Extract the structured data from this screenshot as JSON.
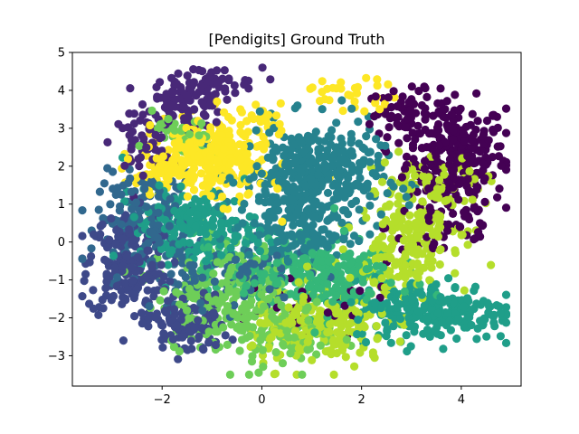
{
  "chart_data": {
    "type": "scatter",
    "title": "[Pendigits] Ground Truth",
    "xlabel": "",
    "ylabel": "",
    "xlim": [
      -3.8,
      5.2
    ],
    "ylim": [
      -3.8,
      5.0
    ],
    "xticks": [
      -2,
      0,
      2,
      4
    ],
    "yticks": [
      -3,
      -2,
      -1,
      0,
      1,
      2,
      3,
      4,
      5
    ],
    "xtick_labels": [
      "−2",
      "0",
      "2",
      "4"
    ],
    "ytick_labels": [
      "−3",
      "−2",
      "−1",
      "0",
      "1",
      "2",
      "3",
      "4",
      "5"
    ],
    "grid": false,
    "legend": "none",
    "colormap": "viridis",
    "series": [
      {
        "color": "#440154",
        "clusters": [
          {
            "cx": 3.9,
            "cy": 2.3,
            "sx": 0.5,
            "sy": 0.7,
            "n": 260
          },
          {
            "cx": 2.9,
            "cy": 3.4,
            "sx": 0.4,
            "sy": 0.3,
            "n": 60
          },
          {
            "cx": 3.7,
            "cy": 0.4,
            "sx": 0.6,
            "sy": 0.5,
            "n": 50
          },
          {
            "cx": 0.8,
            "cy": -1.8,
            "sx": 1.0,
            "sy": 0.4,
            "n": 30
          }
        ]
      },
      {
        "color": "#482878",
        "clusters": [
          {
            "cx": -1.5,
            "cy": 3.7,
            "sx": 0.4,
            "sy": 0.35,
            "n": 110
          },
          {
            "cx": -2.4,
            "cy": 2.6,
            "sx": 0.3,
            "sy": 0.35,
            "n": 50
          },
          {
            "cx": -1.0,
            "cy": 4.2,
            "sx": 0.5,
            "sy": 0.2,
            "n": 30
          }
        ]
      },
      {
        "color": "#3e4989",
        "clusters": [
          {
            "cx": -2.7,
            "cy": -0.6,
            "sx": 0.4,
            "sy": 0.7,
            "n": 200
          },
          {
            "cx": -1.5,
            "cy": -2.2,
            "sx": 0.4,
            "sy": 0.4,
            "n": 120
          }
        ]
      },
      {
        "color": "#31688e",
        "clusters": [
          {
            "cx": -2.3,
            "cy": 0.6,
            "sx": 0.5,
            "sy": 0.6,
            "n": 160
          },
          {
            "cx": -1.4,
            "cy": -1.0,
            "sx": 0.4,
            "sy": 0.4,
            "n": 50
          },
          {
            "cx": 0.0,
            "cy": -0.8,
            "sx": 0.5,
            "sy": 0.4,
            "n": 50
          }
        ]
      },
      {
        "color": "#26828e",
        "clusters": [
          {
            "cx": 1.0,
            "cy": 1.7,
            "sx": 0.7,
            "sy": 0.7,
            "n": 380
          },
          {
            "cx": 0.6,
            "cy": 0.2,
            "sx": 0.6,
            "sy": 0.4,
            "n": 120
          }
        ]
      },
      {
        "color": "#1f9e89",
        "clusters": [
          {
            "cx": 3.4,
            "cy": -1.8,
            "sx": 0.8,
            "sy": 0.4,
            "n": 260
          },
          {
            "cx": -1.3,
            "cy": 0.3,
            "sx": 0.6,
            "sy": 0.5,
            "n": 150
          },
          {
            "cx": -2.0,
            "cy": 0.8,
            "sx": 0.4,
            "sy": 0.4,
            "n": 40
          }
        ]
      },
      {
        "color": "#35b779",
        "clusters": [
          {
            "cx": 1.2,
            "cy": -0.9,
            "sx": 0.7,
            "sy": 0.5,
            "n": 220
          },
          {
            "cx": -0.4,
            "cy": -0.7,
            "sx": 0.5,
            "sy": 0.5,
            "n": 60
          }
        ]
      },
      {
        "color": "#6ece58",
        "clusters": [
          {
            "cx": -0.7,
            "cy": -1.4,
            "sx": 0.7,
            "sy": 0.7,
            "n": 230
          },
          {
            "cx": 0.5,
            "cy": -2.5,
            "sx": 0.5,
            "sy": 0.4,
            "n": 80
          },
          {
            "cx": -1.6,
            "cy": 2.8,
            "sx": 0.3,
            "sy": 0.3,
            "n": 30
          }
        ]
      },
      {
        "color": "#b5de2b",
        "clusters": [
          {
            "cx": 1.2,
            "cy": -2.3,
            "sx": 0.7,
            "sy": 0.5,
            "n": 200
          },
          {
            "cx": 3.0,
            "cy": 0.6,
            "sx": 0.5,
            "sy": 0.7,
            "n": 180
          },
          {
            "cx": 2.7,
            "cy": -0.9,
            "sx": 0.5,
            "sy": 0.5,
            "n": 80
          },
          {
            "cx": 3.7,
            "cy": 1.4,
            "sx": 0.4,
            "sy": 0.4,
            "n": 40
          }
        ]
      },
      {
        "color": "#fde725",
        "clusters": [
          {
            "cx": -1.0,
            "cy": 2.2,
            "sx": 0.55,
            "sy": 0.55,
            "n": 300
          },
          {
            "cx": -1.9,
            "cy": 1.9,
            "sx": 0.4,
            "sy": 0.3,
            "n": 60
          },
          {
            "cx": 1.8,
            "cy": 3.9,
            "sx": 0.5,
            "sy": 0.2,
            "n": 30
          },
          {
            "cx": 0.1,
            "cy": 3.3,
            "sx": 0.3,
            "sy": 0.2,
            "n": 20
          }
        ]
      }
    ]
  }
}
